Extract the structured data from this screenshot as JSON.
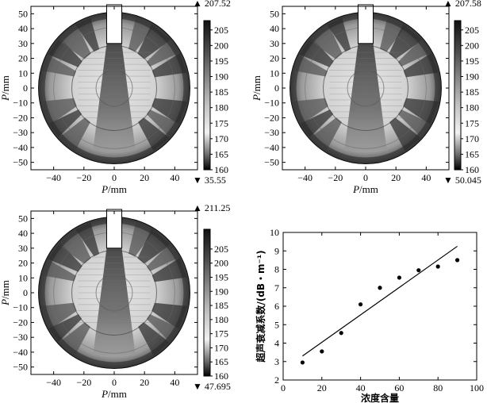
{
  "colors": {
    "axis": "#000000",
    "background": "#ffffff",
    "map_dark": "#000000",
    "map_light": "#ffffff"
  },
  "chart_data": [
    {
      "type": "heatmap",
      "panel": "a",
      "xlabel_italic": "P",
      "xlabel_unit": "/mm",
      "ylabel_italic": "P",
      "ylabel_unit": "/mm",
      "xlim": [
        -55,
        55
      ],
      "ylim": [
        -55,
        55
      ],
      "xticks": [
        "−40",
        "−20",
        "0",
        "20",
        "40"
      ],
      "yticks": [
        "50",
        "40",
        "30",
        "20",
        "10",
        "0",
        "−10",
        "−20",
        "−30",
        "−40",
        "−50"
      ],
      "colorbar": {
        "max_marker": "▲ 207.52",
        "min_marker": "▼ 35.55",
        "ticks": [
          "205",
          "200",
          "195",
          "190",
          "185",
          "180",
          "175",
          "170",
          "165",
          "160"
        ],
        "range": [
          160,
          208
        ]
      }
    },
    {
      "type": "heatmap",
      "panel": "b",
      "xlabel_italic": "P",
      "xlabel_unit": "/mm",
      "ylabel_italic": "P",
      "ylabel_unit": "/mm",
      "xlim": [
        -55,
        55
      ],
      "ylim": [
        -55,
        55
      ],
      "xticks": [
        "−40",
        "−20",
        "0",
        "20",
        "40"
      ],
      "yticks": [
        "50",
        "40",
        "30",
        "20",
        "10",
        "0",
        "−10",
        "−20",
        "−30",
        "−40",
        "−50"
      ],
      "colorbar": {
        "max_marker": "▲ 207.58",
        "min_marker": "▼ 50.045",
        "ticks": [
          "205",
          "200",
          "195",
          "190",
          "185",
          "180",
          "175",
          "170",
          "165",
          "160"
        ],
        "range": [
          160,
          208
        ]
      }
    },
    {
      "type": "heatmap",
      "panel": "c",
      "xlabel_italic": "P",
      "xlabel_unit": "/mm",
      "ylabel_italic": "P",
      "ylabel_unit": "/mm",
      "xlim": [
        -55,
        55
      ],
      "ylim": [
        -55,
        55
      ],
      "xticks": [
        "−40",
        "−20",
        "0",
        "20",
        "40"
      ],
      "yticks": [
        "50",
        "40",
        "30",
        "20",
        "10",
        "0",
        "−10",
        "−20",
        "−30",
        "−40",
        "−50"
      ],
      "colorbar": {
        "max_marker": "▲ 211.25",
        "min_marker": "▼ 47.695",
        "ticks": [
          "205",
          "200",
          "195",
          "190",
          "185",
          "180",
          "175",
          "170",
          "165",
          "160"
        ],
        "range": [
          160,
          212
        ]
      }
    },
    {
      "type": "scatter",
      "panel": "d",
      "xlabel": "浓度含量",
      "ylabel": "超声衰减系数/(dB・m⁻¹)",
      "xlim": [
        0,
        100
      ],
      "ylim": [
        2,
        10
      ],
      "xticks": [
        0,
        20,
        40,
        60,
        80,
        100
      ],
      "yticks": [
        2,
        3,
        4,
        5,
        6,
        7,
        8,
        9,
        10
      ],
      "x": [
        10,
        20,
        30,
        40,
        50,
        60,
        70,
        80,
        90
      ],
      "y": [
        2.95,
        3.55,
        4.55,
        6.1,
        7.0,
        7.55,
        7.95,
        8.15,
        8.5
      ],
      "fit_line": {
        "x": [
          10,
          90
        ],
        "y": [
          3.3,
          9.25
        ]
      },
      "grid": false
    }
  ]
}
